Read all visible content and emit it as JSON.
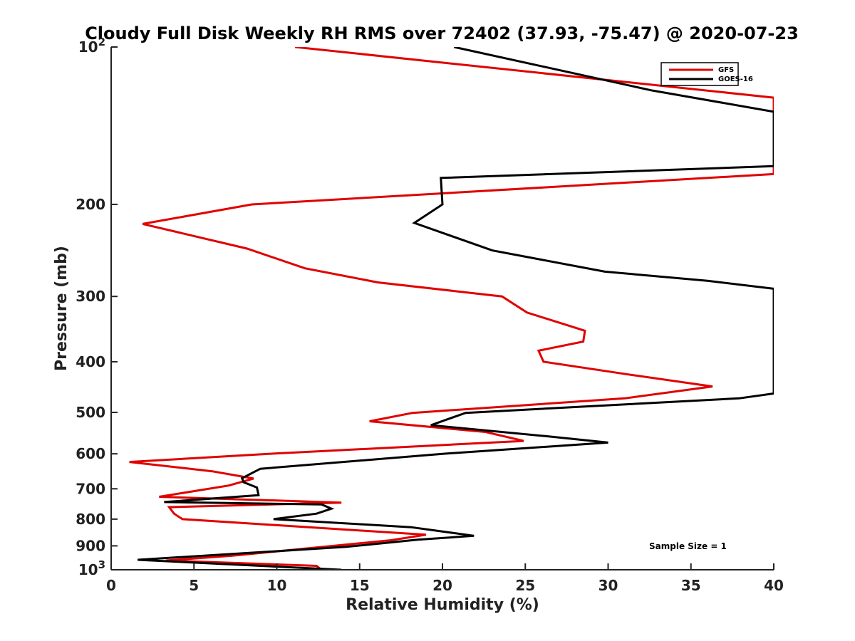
{
  "chart_data": {
    "type": "line",
    "title": "Cloudy Full Disk Weekly RH RMS over 72402 (37.93, -75.47) @ 2020-07-23",
    "xlabel": "Relative Humidity (%)",
    "ylabel": "Pressure (mb)",
    "xlim": [
      0,
      40
    ],
    "ylim": [
      100,
      1000
    ],
    "yscale": "log",
    "y_reversed": true,
    "grid": false,
    "x_ticks": [
      "0",
      "5",
      "10",
      "15",
      "20",
      "25",
      "30",
      "35",
      "40"
    ],
    "y_ticks": [
      {
        "value": 100,
        "base": "10",
        "exp": "2"
      },
      {
        "value": 200,
        "label": "200"
      },
      {
        "value": 300,
        "label": "300"
      },
      {
        "value": 400,
        "label": "400"
      },
      {
        "value": 500,
        "label": "500"
      },
      {
        "value": 600,
        "label": "600"
      },
      {
        "value": 700,
        "label": "700"
      },
      {
        "value": 800,
        "label": "800"
      },
      {
        "value": 900,
        "label": "900"
      },
      {
        "value": 1000,
        "base": "10",
        "exp": "3"
      }
    ],
    "legend_position": "top-right",
    "annotation": "Sample Size = 1",
    "series": [
      {
        "name": "GFS",
        "color": "#e00000",
        "points": [
          [
            11.1,
            100
          ],
          [
            40,
            125
          ],
          [
            40,
            175
          ],
          [
            8.5,
            200
          ],
          [
            1.9,
            218
          ],
          [
            8.2,
            243
          ],
          [
            11.7,
            265
          ],
          [
            16.1,
            282
          ],
          [
            23.6,
            300
          ],
          [
            25.1,
            322
          ],
          [
            28.6,
            349
          ],
          [
            28.5,
            366
          ],
          [
            25.8,
            381
          ],
          [
            26.1,
            400
          ],
          [
            31.2,
            423
          ],
          [
            36.3,
            446
          ],
          [
            31.0,
            470
          ],
          [
            18.2,
            501
          ],
          [
            15.6,
            520
          ],
          [
            22.6,
            545
          ],
          [
            24.9,
            567
          ],
          [
            9.5,
            600
          ],
          [
            1.1,
            622
          ],
          [
            6.1,
            648
          ],
          [
            8.6,
            669
          ],
          [
            7.1,
            690
          ],
          [
            2.9,
            725
          ],
          [
            13.9,
            744
          ],
          [
            3.5,
            759
          ],
          [
            3.8,
            781
          ],
          [
            4.3,
            800
          ],
          [
            19.0,
            857
          ],
          [
            16.9,
            878
          ],
          [
            12.0,
            909
          ],
          [
            7.3,
            940
          ],
          [
            3.3,
            960
          ],
          [
            12.4,
            983
          ],
          [
            12.7,
            1000
          ]
        ]
      },
      {
        "name": "GOES-16",
        "color": "#000000",
        "points": [
          [
            20.7,
            100
          ],
          [
            32.6,
            121
          ],
          [
            40,
            133
          ],
          [
            40,
            169
          ],
          [
            19.9,
            178
          ],
          [
            20.0,
            200
          ],
          [
            18.3,
            217
          ],
          [
            23.0,
            245
          ],
          [
            29.8,
            269
          ],
          [
            36.0,
            280
          ],
          [
            40,
            290
          ],
          [
            40,
            460
          ],
          [
            37.9,
            470
          ],
          [
            21.4,
            501
          ],
          [
            19.3,
            529
          ],
          [
            26.2,
            555
          ],
          [
            30.0,
            571
          ],
          [
            20.0,
            600
          ],
          [
            9.0,
            641
          ],
          [
            7.9,
            668
          ],
          [
            8.0,
            680
          ],
          [
            8.8,
            696
          ],
          [
            8.9,
            720
          ],
          [
            3.2,
            742
          ],
          [
            12.7,
            750
          ],
          [
            13.3,
            764
          ],
          [
            12.4,
            781
          ],
          [
            9.8,
            800
          ],
          [
            18.1,
            829
          ],
          [
            21.9,
            861
          ],
          [
            18.5,
            876
          ],
          [
            14.2,
            904
          ],
          [
            1.6,
            957
          ],
          [
            13.9,
            1000
          ]
        ]
      }
    ]
  }
}
